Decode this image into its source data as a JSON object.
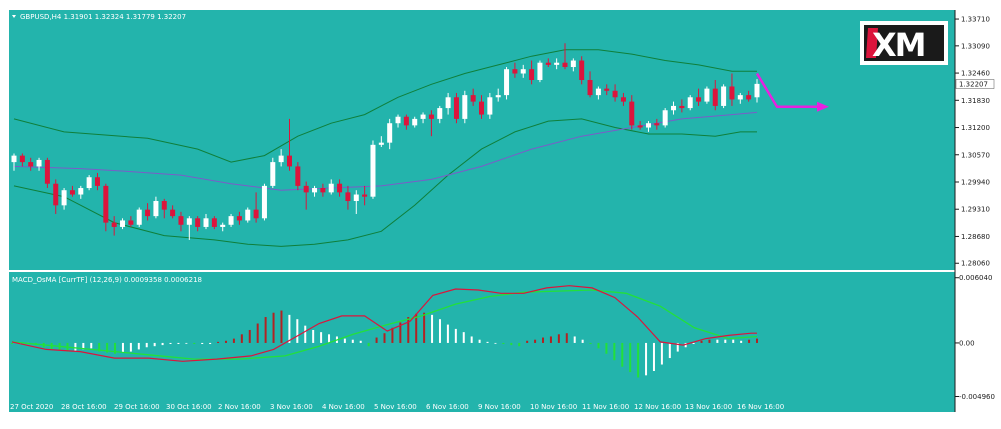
{
  "colors": {
    "background": "#23b4ac",
    "axis_panel": "#ffffff",
    "bull_candle": "#ffffff",
    "bear_candle": "#dc143c",
    "bollinger": "#0f7f3a",
    "ma": "#7b5cc9",
    "macd_main": "#dc143c",
    "macd_signal": "#22e03a",
    "hist_up": "#ffffff",
    "hist_strong": "#b22222",
    "hist_down": "#22e03a",
    "arrow": "#e820e0",
    "logo_bg": "#ffffff"
  },
  "logo": {
    "text": "XM"
  },
  "chart_data": [
    {
      "type": "candlestick",
      "title": "GBPUSD,H4  1.31901 1.32324 1.31779 1.32207",
      "ylim": [
        1.2795,
        1.3385
      ],
      "y_ticks": [
        1.3371,
        1.3309,
        1.3246,
        1.3183,
        1.312,
        1.3057,
        1.2994,
        1.2931,
        1.2868,
        1.2806
      ],
      "y_tick_labels": [
        "1.33710",
        "1.33090",
        "1.32460",
        "1.31830",
        "1.31200",
        "1.30570",
        "1.29940",
        "1.29310",
        "1.28680",
        "1.28060"
      ],
      "last_price_label": "1.32207",
      "last_price": 1.32207,
      "x_labels": [
        "27 Oct 2020",
        "28 Oct 16:00",
        "29 Oct 16:00",
        "30 Oct 16:00",
        "2 Nov 16:00",
        "3 Nov 16:00",
        "4 Nov 16:00",
        "5 Nov 16:00",
        "6 Nov 16:00",
        "9 Nov 16:00",
        "10 Nov 16:00",
        "11 Nov 16:00",
        "12 Nov 16:00",
        "13 Nov 16:00",
        "16 Nov 16:00"
      ],
      "ohlc": [
        [
          1.304,
          1.306,
          1.302,
          1.3055
        ],
        [
          1.3055,
          1.306,
          1.303,
          1.304
        ],
        [
          1.304,
          1.305,
          1.302,
          1.303
        ],
        [
          1.303,
          1.305,
          1.302,
          1.3045
        ],
        [
          1.3045,
          1.305,
          1.298,
          1.299
        ],
        [
          1.299,
          1.3,
          1.292,
          1.294
        ],
        [
          1.294,
          1.298,
          1.293,
          1.2975
        ],
        [
          1.2975,
          1.2985,
          1.296,
          1.2965
        ],
        [
          1.2965,
          1.2985,
          1.2955,
          1.298
        ],
        [
          1.298,
          1.301,
          1.2975,
          1.3005
        ],
        [
          1.3005,
          1.3015,
          1.2975,
          1.2985
        ],
        [
          1.2985,
          1.299,
          1.288,
          1.29
        ],
        [
          1.29,
          1.2915,
          1.287,
          1.289
        ],
        [
          1.289,
          1.291,
          1.2885,
          1.2905
        ],
        [
          1.2905,
          1.2915,
          1.289,
          1.2895
        ],
        [
          1.2895,
          1.2935,
          1.289,
          1.293
        ],
        [
          1.293,
          1.2945,
          1.2905,
          1.2915
        ],
        [
          1.2915,
          1.296,
          1.291,
          1.295
        ],
        [
          1.295,
          1.2955,
          1.291,
          1.293
        ],
        [
          1.293,
          1.294,
          1.291,
          1.2915
        ],
        [
          1.2915,
          1.2925,
          1.288,
          1.2895
        ],
        [
          1.2895,
          1.2915,
          1.286,
          1.291
        ],
        [
          1.291,
          1.2915,
          1.288,
          1.289
        ],
        [
          1.289,
          1.292,
          1.2885,
          1.291
        ],
        [
          1.291,
          1.2915,
          1.2885,
          1.289
        ],
        [
          1.289,
          1.29,
          1.288,
          1.2895
        ],
        [
          1.2895,
          1.292,
          1.289,
          1.2915
        ],
        [
          1.2915,
          1.2925,
          1.2895,
          1.2905
        ],
        [
          1.2905,
          1.2935,
          1.29,
          1.293
        ],
        [
          1.293,
          1.297,
          1.29,
          1.291
        ],
        [
          1.291,
          1.299,
          1.2905,
          1.2985
        ],
        [
          1.2985,
          1.305,
          1.298,
          1.304
        ],
        [
          1.304,
          1.307,
          1.303,
          1.3055
        ],
        [
          1.3055,
          1.314,
          1.302,
          1.303
        ],
        [
          1.303,
          1.304,
          1.2975,
          1.2985
        ],
        [
          1.2985,
          1.2995,
          1.293,
          1.297
        ],
        [
          1.297,
          1.2985,
          1.296,
          1.298
        ],
        [
          1.298,
          1.299,
          1.296,
          1.297
        ],
        [
          1.297,
          1.3,
          1.2965,
          1.299
        ],
        [
          1.299,
          1.3,
          1.296,
          1.297
        ],
        [
          1.297,
          1.2985,
          1.293,
          1.295
        ],
        [
          1.295,
          1.2975,
          1.292,
          1.2965
        ],
        [
          1.2965,
          1.2985,
          1.294,
          1.296
        ],
        [
          1.296,
          1.309,
          1.2955,
          1.308
        ],
        [
          1.308,
          1.31,
          1.3075,
          1.3085
        ],
        [
          1.3085,
          1.314,
          1.307,
          1.313
        ],
        [
          1.313,
          1.315,
          1.312,
          1.3145
        ],
        [
          1.3145,
          1.315,
          1.3115,
          1.3125
        ],
        [
          1.3125,
          1.3145,
          1.312,
          1.314
        ],
        [
          1.314,
          1.3155,
          1.313,
          1.315
        ],
        [
          1.315,
          1.316,
          1.31,
          1.314
        ],
        [
          1.314,
          1.317,
          1.313,
          1.3165
        ],
        [
          1.3165,
          1.32,
          1.315,
          1.319
        ],
        [
          1.319,
          1.32,
          1.313,
          1.314
        ],
        [
          1.314,
          1.3205,
          1.313,
          1.3195
        ],
        [
          1.3195,
          1.321,
          1.317,
          1.318
        ],
        [
          1.318,
          1.3195,
          1.314,
          1.315
        ],
        [
          1.315,
          1.32,
          1.314,
          1.319
        ],
        [
          1.319,
          1.321,
          1.318,
          1.3195
        ],
        [
          1.3195,
          1.326,
          1.3185,
          1.3255
        ],
        [
          1.3255,
          1.327,
          1.3235,
          1.3245
        ],
        [
          1.3245,
          1.3265,
          1.3235,
          1.3255
        ],
        [
          1.3255,
          1.3275,
          1.322,
          1.323
        ],
        [
          1.323,
          1.3275,
          1.3225,
          1.327
        ],
        [
          1.327,
          1.328,
          1.326,
          1.3265
        ],
        [
          1.3265,
          1.328,
          1.3255,
          1.327
        ],
        [
          1.327,
          1.3315,
          1.3255,
          1.326
        ],
        [
          1.326,
          1.328,
          1.325,
          1.3275
        ],
        [
          1.3275,
          1.3285,
          1.322,
          1.323
        ],
        [
          1.323,
          1.325,
          1.319,
          1.3195
        ],
        [
          1.3195,
          1.3215,
          1.3185,
          1.321
        ],
        [
          1.321,
          1.322,
          1.3195,
          1.3205
        ],
        [
          1.3205,
          1.322,
          1.318,
          1.319
        ],
        [
          1.319,
          1.32,
          1.317,
          1.318
        ],
        [
          1.318,
          1.3195,
          1.3115,
          1.3125
        ],
        [
          1.3125,
          1.3135,
          1.3115,
          1.312
        ],
        [
          1.312,
          1.3135,
          1.311,
          1.313
        ],
        [
          1.313,
          1.314,
          1.3115,
          1.3125
        ],
        [
          1.3125,
          1.3165,
          1.312,
          1.316
        ],
        [
          1.316,
          1.318,
          1.315,
          1.317
        ],
        [
          1.317,
          1.3185,
          1.3155,
          1.3165
        ],
        [
          1.3165,
          1.3195,
          1.316,
          1.319
        ],
        [
          1.319,
          1.321,
          1.317,
          1.318
        ],
        [
          1.318,
          1.3215,
          1.3175,
          1.321
        ],
        [
          1.321,
          1.323,
          1.316,
          1.317
        ],
        [
          1.317,
          1.322,
          1.3165,
          1.3215
        ],
        [
          1.3215,
          1.3245,
          1.317,
          1.3185
        ],
        [
          1.3185,
          1.32,
          1.3175,
          1.3195
        ],
        [
          1.3195,
          1.3205,
          1.318,
          1.3185
        ],
        [
          1.319,
          1.3232,
          1.3178,
          1.3221
        ]
      ],
      "bollinger_upper": [
        [
          0,
          1.314
        ],
        [
          6,
          1.311
        ],
        [
          16,
          1.3095
        ],
        [
          22,
          1.307
        ],
        [
          26,
          1.304
        ],
        [
          30,
          1.3055
        ],
        [
          34,
          1.31
        ],
        [
          38,
          1.313
        ],
        [
          42,
          1.315
        ],
        [
          46,
          1.319
        ],
        [
          50,
          1.322
        ],
        [
          54,
          1.3245
        ],
        [
          58,
          1.3265
        ],
        [
          62,
          1.3285
        ],
        [
          66,
          1.33
        ],
        [
          70,
          1.33
        ],
        [
          74,
          1.329
        ],
        [
          78,
          1.3275
        ],
        [
          82,
          1.3265
        ],
        [
          86,
          1.325
        ],
        [
          89,
          1.325
        ]
      ],
      "bollinger_lower": [
        [
          0,
          1.2985
        ],
        [
          6,
          1.296
        ],
        [
          12,
          1.29
        ],
        [
          18,
          1.287
        ],
        [
          24,
          1.286
        ],
        [
          28,
          1.285
        ],
        [
          32,
          1.2845
        ],
        [
          36,
          1.285
        ],
        [
          40,
          1.286
        ],
        [
          44,
          1.288
        ],
        [
          48,
          1.294
        ],
        [
          52,
          1.301
        ],
        [
          56,
          1.307
        ],
        [
          60,
          1.311
        ],
        [
          64,
          1.3135
        ],
        [
          68,
          1.314
        ],
        [
          72,
          1.312
        ],
        [
          76,
          1.3105
        ],
        [
          80,
          1.3105
        ],
        [
          84,
          1.31
        ],
        [
          87,
          1.311
        ],
        [
          89,
          1.311
        ]
      ],
      "moving_average": [
        [
          0,
          1.303
        ],
        [
          8,
          1.3025
        ],
        [
          14,
          1.3018
        ],
        [
          20,
          1.301
        ],
        [
          26,
          1.299
        ],
        [
          32,
          1.2975
        ],
        [
          38,
          1.298
        ],
        [
          44,
          1.2985
        ],
        [
          50,
          1.3
        ],
        [
          56,
          1.303
        ],
        [
          62,
          1.307
        ],
        [
          68,
          1.31
        ],
        [
          74,
          1.312
        ],
        [
          80,
          1.314
        ],
        [
          86,
          1.315
        ],
        [
          89,
          1.3155
        ]
      ]
    },
    {
      "type": "bar",
      "title": "MACD_OsMA [CurrTF] (12,26,9) 0.0009358 0.0006218",
      "ylim": [
        -0.0051,
        0.0062
      ],
      "y_ticks": [
        0.00604,
        0.0,
        -0.00496
      ],
      "y_tick_labels": [
        "0.006040",
        "0.00",
        "-0.004960"
      ],
      "histogram": [
        -0.0001,
        -0.0001,
        -0.0001,
        -0.0002,
        -0.0004,
        -0.0006,
        -0.0007,
        -0.0008,
        -0.0007,
        -0.0006,
        -0.0005,
        -0.0008,
        -0.0009,
        -0.001,
        -0.0009,
        -0.0008,
        -0.0006,
        -0.0004,
        -0.0003,
        -0.0002,
        -0.0001,
        -0.0001,
        -5e-05,
        -0.0001,
        -0.0001,
        -0.0001,
        0.0001,
        0.0002,
        0.0004,
        0.0008,
        0.0012,
        0.0018,
        0.0024,
        0.0028,
        0.003,
        0.0026,
        0.0022,
        0.0016,
        0.0012,
        0.001,
        0.0008,
        0.0006,
        0.0004,
        0.0003,
        0.0002,
        -0.0003,
        0.0005,
        0.0009,
        0.0014,
        0.0019,
        0.0024,
        0.0027,
        0.0028,
        0.0026,
        0.0022,
        0.0017,
        0.0013,
        0.001,
        0.0006,
        0.0003,
        0.0001,
        0.0,
        -0.0001,
        -0.0002,
        -0.0003,
        0.0002,
        0.0003,
        0.0005,
        0.0006,
        0.0008,
        0.0009,
        0.0006,
        0.0003,
        -0.0001,
        -0.0005,
        -0.001,
        -0.0016,
        -0.0022,
        -0.0027,
        -0.0032,
        -0.003,
        -0.0026,
        -0.002,
        -0.0014,
        -0.0008,
        -0.0004,
        -0.0001,
        0.0002,
        0.0003,
        0.0003,
        0.0003,
        0.0003,
        0.0002,
        0.0003,
        0.0004
      ],
      "macd_main": [
        [
          0,
          0.0001
        ],
        [
          6,
          -0.0006
        ],
        [
          12,
          -0.0008
        ],
        [
          18,
          -0.0014
        ],
        [
          24,
          -0.0014
        ],
        [
          30,
          -0.0017
        ],
        [
          36,
          -0.0015
        ],
        [
          42,
          -0.0012
        ],
        [
          46,
          -0.0006
        ],
        [
          50,
          0.0006
        ],
        [
          54,
          0.0018
        ],
        [
          58,
          0.0025
        ],
        [
          62,
          0.0025
        ],
        [
          66,
          0.0011
        ],
        [
          70,
          0.002
        ],
        [
          74,
          0.0044
        ],
        [
          78,
          0.005
        ],
        [
          82,
          0.0049
        ],
        [
          86,
          0.0046
        ],
        [
          90,
          0.0046
        ],
        [
          94,
          0.0051
        ],
        [
          98,
          0.0053
        ],
        [
          102,
          0.0051
        ],
        [
          106,
          0.0042
        ],
        [
          110,
          0.0024
        ],
        [
          114,
          0.0001
        ],
        [
          118,
          -0.0002
        ],
        [
          122,
          0.0004
        ],
        [
          126,
          0.0007
        ],
        [
          130,
          0.0009
        ],
        [
          131,
          0.0009
        ]
      ],
      "macd_signal": [
        [
          0,
          0.0001
        ],
        [
          8,
          -0.0003
        ],
        [
          16,
          -0.0007
        ],
        [
          24,
          -0.0011
        ],
        [
          32,
          -0.0015
        ],
        [
          40,
          -0.0015
        ],
        [
          48,
          -0.0012
        ],
        [
          54,
          -0.0003
        ],
        [
          60,
          0.0008
        ],
        [
          66,
          0.0017
        ],
        [
          72,
          0.0025
        ],
        [
          78,
          0.0036
        ],
        [
          84,
          0.0043
        ],
        [
          90,
          0.0047
        ],
        [
          96,
          0.0048
        ],
        [
          102,
          0.0049
        ],
        [
          108,
          0.0046
        ],
        [
          114,
          0.0034
        ],
        [
          120,
          0.0014
        ],
        [
          126,
          0.0004
        ],
        [
          131,
          0.0006
        ]
      ]
    }
  ]
}
